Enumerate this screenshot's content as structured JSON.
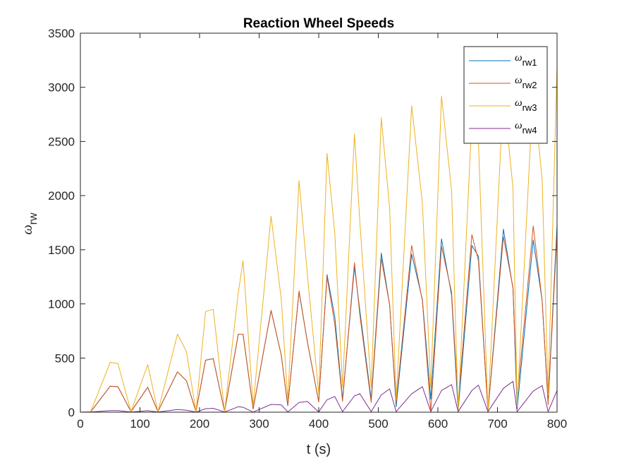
{
  "chart_data": {
    "type": "line",
    "title": "Reaction Wheel Speeds",
    "xlabel": "t (s)",
    "ylabel_symbol": "ω",
    "ylabel_sub": "rw",
    "xlim": [
      0,
      800
    ],
    "ylim": [
      0,
      3500
    ],
    "xticks": [
      0,
      100,
      200,
      300,
      400,
      500,
      600,
      700,
      800
    ],
    "yticks": [
      0,
      500,
      1000,
      1500,
      2000,
      2500,
      3000,
      3500
    ],
    "grid": false,
    "legend_position": "top-right",
    "x": [
      0,
      17,
      50,
      63,
      85,
      113,
      130,
      163,
      178,
      194,
      210,
      223,
      242,
      265,
      273,
      290,
      320,
      337,
      348,
      367,
      381,
      400,
      414,
      427,
      440,
      460,
      469,
      488,
      505,
      519,
      530,
      556,
      574,
      588,
      606,
      623,
      634,
      657,
      668,
      684,
      710,
      726,
      733,
      760,
      775,
      785,
      800
    ],
    "series": [
      {
        "name": "ω",
        "sub": "rw1",
        "color": "#0072BD",
        "values": [
          0,
          2,
          240,
          235,
          5,
          230,
          5,
          372,
          290,
          5,
          480,
          495,
          5,
          720,
          720,
          30,
          940,
          530,
          60,
          1110,
          650,
          95,
          1270,
          880,
          120,
          1340,
          940,
          120,
          1470,
          990,
          50,
          1460,
          1040,
          120,
          1600,
          1080,
          10,
          1540,
          1440,
          5,
          1690,
          1140,
          30,
          1590,
          1030,
          90,
          1730
        ]
      },
      {
        "name": "ω",
        "sub": "rw2",
        "color": "#D95319",
        "values": [
          0,
          2,
          240,
          235,
          5,
          230,
          5,
          372,
          290,
          5,
          480,
          495,
          5,
          720,
          720,
          30,
          940,
          530,
          60,
          1120,
          650,
          95,
          1250,
          810,
          100,
          1380,
          900,
          90,
          1420,
          990,
          90,
          1540,
          1030,
          5,
          1530,
          1110,
          80,
          1640,
          1400,
          5,
          1620,
          1150,
          120,
          1720,
          1030,
          70,
          1660
        ]
      },
      {
        "name": "ω",
        "sub": "rw3",
        "color": "#EDB120",
        "values": [
          0,
          2,
          460,
          450,
          5,
          440,
          5,
          720,
          560,
          5,
          930,
          950,
          5,
          1100,
          1400,
          60,
          1810,
          1050,
          110,
          2140,
          1270,
          170,
          2390,
          1650,
          230,
          2570,
          1760,
          230,
          2720,
          1880,
          110,
          2830,
          1930,
          230,
          2920,
          2050,
          10,
          2720,
          2500,
          5,
          2960,
          2070,
          50,
          3000,
          2140,
          160,
          3200
        ]
      },
      {
        "name": "ω",
        "sub": "rw4",
        "color": "#7E2F8E",
        "values": [
          0,
          1,
          15,
          15,
          1,
          14,
          1,
          25,
          18,
          1,
          32,
          36,
          1,
          50,
          45,
          1,
          72,
          68,
          2,
          90,
          100,
          2,
          115,
          145,
          5,
          150,
          170,
          5,
          160,
          215,
          5,
          170,
          235,
          5,
          200,
          255,
          5,
          200,
          250,
          5,
          220,
          285,
          5,
          195,
          245,
          5,
          200
        ]
      }
    ]
  }
}
